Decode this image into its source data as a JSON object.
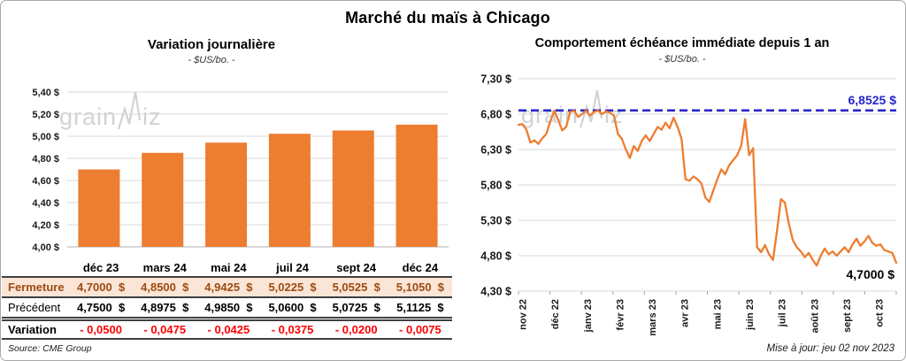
{
  "page": {
    "title": "Marché du maïs à Chicago",
    "source": "Source: CME Group",
    "updated": "Mise à jour: jeu 02 nov 2023",
    "watermark_prefix": "grain",
    "watermark_suffix": "iz"
  },
  "colors": {
    "orange": "#ED7D31",
    "peach_bg": "#FBE5D6",
    "fermeture_text": "#9C4B12",
    "variation_red": "#FF0000",
    "blue": "#2626C9",
    "grid": "#D9D9D9",
    "axis_text": "#1A1A1A",
    "watermark_grey": "#D2D2D7"
  },
  "chart_data": [
    {
      "type": "bar",
      "title": "Variation journalière",
      "subtitle": "- $US/bo. -",
      "categories": [
        "déc 23",
        "mars 24",
        "mai 24",
        "juil 24",
        "sept 24",
        "déc 24"
      ],
      "values": [
        4.7,
        4.85,
        4.9425,
        5.0225,
        5.0525,
        5.105
      ],
      "xlabel": "",
      "ylabel": "$US/bo.",
      "ylim": [
        4.0,
        5.4
      ],
      "ytick_step": 0.2,
      "ytick_suffix": " $",
      "grid": true,
      "bar_color": "#ED7D31"
    },
    {
      "type": "line",
      "title": "Comportement échéance immédiate depuis 1 an",
      "subtitle": "- $US/bo. -",
      "x_labels": [
        "nov 22",
        "déc 22",
        "janv 23",
        "févr 23",
        "mars 23",
        "avr 23",
        "mai 23",
        "juin 23",
        "juil 23",
        "août 23",
        "sept 23",
        "oct 23"
      ],
      "values": [
        6.65,
        6.66,
        6.58,
        6.4,
        6.43,
        6.38,
        6.46,
        6.52,
        6.7,
        6.85,
        6.72,
        6.57,
        6.62,
        6.83,
        6.85,
        6.76,
        6.8,
        6.85,
        6.78,
        6.83,
        6.85,
        6.8,
        6.84,
        6.82,
        6.78,
        6.52,
        6.45,
        6.3,
        6.18,
        6.35,
        6.28,
        6.42,
        6.5,
        6.42,
        6.52,
        6.62,
        6.58,
        6.68,
        6.6,
        6.75,
        6.62,
        6.45,
        5.88,
        5.86,
        5.92,
        5.88,
        5.82,
        5.62,
        5.56,
        5.72,
        5.88,
        6.02,
        5.95,
        6.08,
        6.15,
        6.22,
        6.35,
        6.73,
        6.22,
        6.32,
        4.92,
        4.85,
        4.95,
        4.82,
        4.74,
        5.15,
        5.6,
        5.55,
        5.25,
        5.02,
        4.92,
        4.86,
        4.78,
        4.84,
        4.74,
        4.66,
        4.8,
        4.9,
        4.82,
        4.86,
        4.8,
        4.86,
        4.92,
        4.85,
        4.96,
        5.04,
        4.94,
        5.0,
        5.08,
        4.98,
        4.94,
        4.96,
        4.88,
        4.86,
        4.84,
        4.7
      ],
      "ylim": [
        4.3,
        7.3
      ],
      "ytick_step": 0.5,
      "ytick_suffix": " $",
      "grid": true,
      "line_color": "#ED7D31",
      "reference_line": {
        "value": 6.8525,
        "label": "6,8525 $"
      },
      "last_value_label": "4,7000 $"
    }
  ],
  "table": {
    "columns": [
      "déc 23",
      "mars 24",
      "mai 24",
      "juil 24",
      "sept 24",
      "déc 24"
    ],
    "rows": [
      {
        "label": "Fermeture",
        "style": "fermeture",
        "values": [
          "4,7000  $",
          "4,8500  $",
          "4,9425  $",
          "5,0225  $",
          "5,0525  $",
          "5,1050  $"
        ]
      },
      {
        "label": "Précédent",
        "style": "precedent",
        "values": [
          "4,7500  $",
          "4,8975  $",
          "4,9850  $",
          "5,0600  $",
          "5,0725  $",
          "5,1125  $"
        ]
      },
      {
        "label": "Variation",
        "style": "variation",
        "values": [
          "- 0,0500",
          "- 0,0475",
          "- 0,0425",
          "- 0,0375",
          "- 0,0200",
          "- 0,0075"
        ]
      }
    ]
  }
}
